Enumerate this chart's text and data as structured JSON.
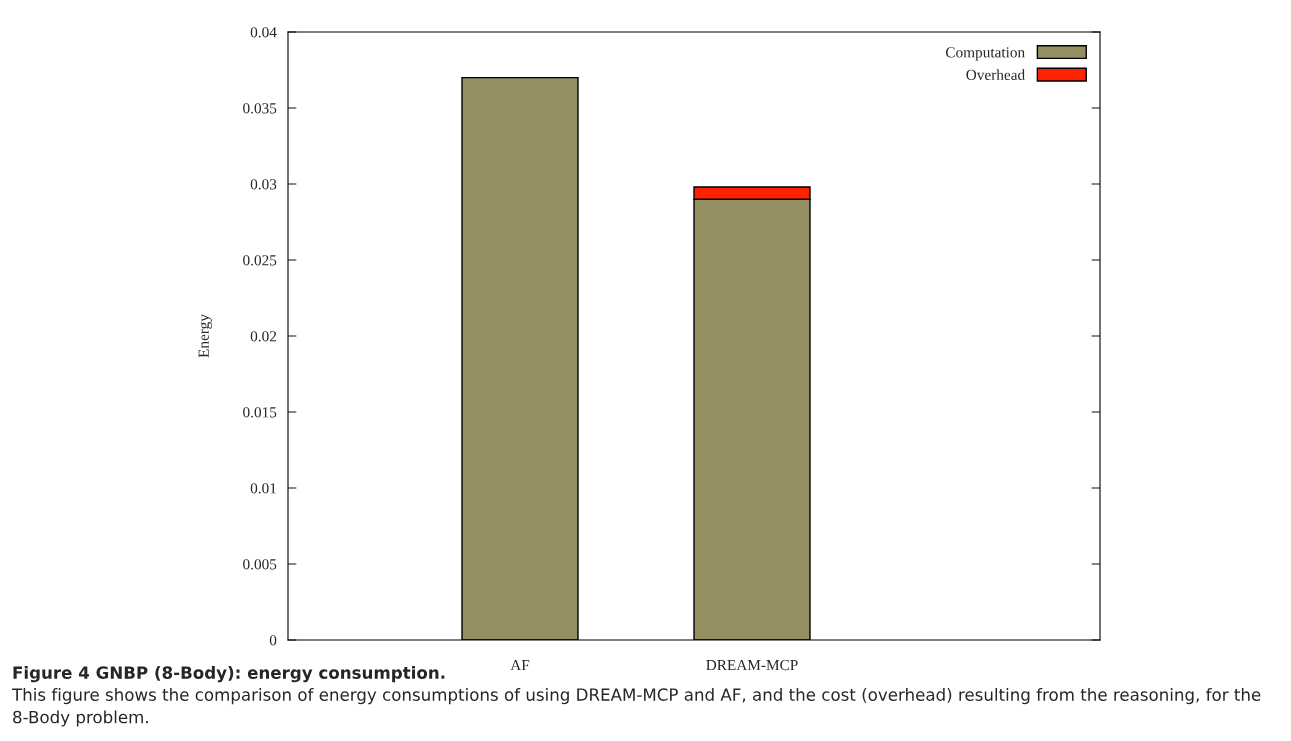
{
  "chart_data": {
    "type": "bar",
    "stacked": true,
    "ylabel": "Energy",
    "categories": [
      "AF",
      "DREAM-MCP"
    ],
    "series": [
      {
        "name": "Computation",
        "color": "#938f60",
        "values": [
          0.037,
          0.029
        ]
      },
      {
        "name": "Overhead",
        "color": "#ff2200",
        "values": [
          null,
          0.0008
        ]
      }
    ],
    "ylim": [
      0,
      0.04
    ],
    "yticks": [
      0,
      0.005,
      0.01,
      0.015,
      0.02,
      0.025,
      0.03,
      0.035,
      0.04
    ],
    "grid": false,
    "legend": "top right",
    "annotations": [
      "Figure 4 GNBP (8-Body): energy consumption.",
      "This figure shows the comparison of energy consumptions of using DREAM-MCP and AF, and the cost (overhead) resulting from the reasoning, for the 8-Body problem."
    ]
  }
}
